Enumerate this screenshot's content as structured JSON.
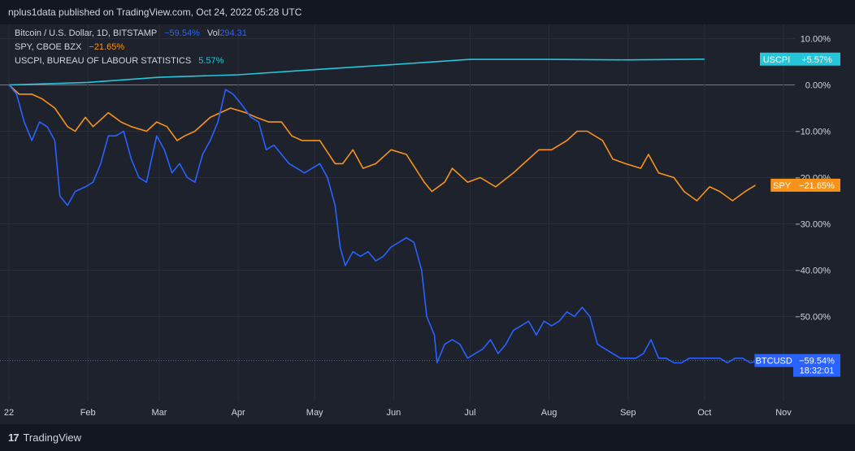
{
  "header": {
    "attribution": "nplus1data published on TradingView.com, Oct 24, 2022 05:28 UTC"
  },
  "legend": [
    {
      "name": "Bitcoin / U.S. Dollar, 1D, BITSTAMP",
      "change": "−59.54%",
      "extra_label": "Vol",
      "extra_value": "294.31",
      "color": "#2962ff"
    },
    {
      "name": "SPY, CBOE BZX",
      "change": "−21.65%",
      "color": "#f7931a"
    },
    {
      "name": "USCPI, BUREAU OF LABOUR STATISTICS",
      "change": "5.57%",
      "color": "#26c6da"
    }
  ],
  "footer": {
    "brand": "TradingView",
    "logo_mark": "17"
  },
  "chart_data": {
    "type": "line",
    "x_unit": "date",
    "x_range": [
      "2022-01-01",
      "2022-11-01"
    ],
    "ylim": [
      -60,
      10
    ],
    "y_ticks": [
      {
        "value": 10,
        "label": "10.00%"
      },
      {
        "value": 0,
        "label": "0.00%"
      },
      {
        "value": -10,
        "label": "−10.00%"
      },
      {
        "value": -20,
        "label": "−20.00%"
      },
      {
        "value": -30,
        "label": "−30.00%"
      },
      {
        "value": -40,
        "label": "−40.00%"
      },
      {
        "value": -50,
        "label": "−50.00%"
      }
    ],
    "x_ticks": [
      {
        "date": "2022-01-01",
        "label": "22"
      },
      {
        "date": "2022-02-01",
        "label": "Feb"
      },
      {
        "date": "2022-03-01",
        "label": "Mar"
      },
      {
        "date": "2022-04-01",
        "label": "Apr"
      },
      {
        "date": "2022-05-01",
        "label": "May"
      },
      {
        "date": "2022-06-01",
        "label": "Jun"
      },
      {
        "date": "2022-07-01",
        "label": "Jul"
      },
      {
        "date": "2022-08-01",
        "label": "Aug"
      },
      {
        "date": "2022-09-01",
        "label": "Sep"
      },
      {
        "date": "2022-10-01",
        "label": "Oct"
      },
      {
        "date": "2022-11-01",
        "label": "Nov"
      }
    ],
    "grid": true,
    "series": [
      {
        "name": "BTCUSD",
        "color": "#2962ff",
        "label_value": "−59.54%",
        "label_sub": "18:32:01",
        "points": [
          [
            "2022-01-01",
            0
          ],
          [
            "2022-01-04",
            -2
          ],
          [
            "2022-01-07",
            -8
          ],
          [
            "2022-01-10",
            -12
          ],
          [
            "2022-01-13",
            -8
          ],
          [
            "2022-01-16",
            -9
          ],
          [
            "2022-01-19",
            -12
          ],
          [
            "2022-01-21",
            -24
          ],
          [
            "2022-01-24",
            -26
          ],
          [
            "2022-01-27",
            -23
          ],
          [
            "2022-01-31",
            -22
          ],
          [
            "2022-02-03",
            -21
          ],
          [
            "2022-02-06",
            -17
          ],
          [
            "2022-02-09",
            -11
          ],
          [
            "2022-02-12",
            -11
          ],
          [
            "2022-02-15",
            -10
          ],
          [
            "2022-02-18",
            -16
          ],
          [
            "2022-02-21",
            -20
          ],
          [
            "2022-02-24",
            -21
          ],
          [
            "2022-02-28",
            -11
          ],
          [
            "2022-03-03",
            -14
          ],
          [
            "2022-03-06",
            -19
          ],
          [
            "2022-03-09",
            -17
          ],
          [
            "2022-03-12",
            -20
          ],
          [
            "2022-03-15",
            -21
          ],
          [
            "2022-03-18",
            -15
          ],
          [
            "2022-03-21",
            -12
          ],
          [
            "2022-03-24",
            -8
          ],
          [
            "2022-03-27",
            -1
          ],
          [
            "2022-03-30",
            -2
          ],
          [
            "2022-04-02",
            -4
          ],
          [
            "2022-04-06",
            -7
          ],
          [
            "2022-04-09",
            -8
          ],
          [
            "2022-04-12",
            -14
          ],
          [
            "2022-04-15",
            -13
          ],
          [
            "2022-04-18",
            -15
          ],
          [
            "2022-04-21",
            -17
          ],
          [
            "2022-04-24",
            -18
          ],
          [
            "2022-04-27",
            -19
          ],
          [
            "2022-04-30",
            -18
          ],
          [
            "2022-05-03",
            -17
          ],
          [
            "2022-05-06",
            -20
          ],
          [
            "2022-05-09",
            -26
          ],
          [
            "2022-05-11",
            -35
          ],
          [
            "2022-05-13",
            -39
          ],
          [
            "2022-05-16",
            -36
          ],
          [
            "2022-05-19",
            -37
          ],
          [
            "2022-05-22",
            -36
          ],
          [
            "2022-05-25",
            -38
          ],
          [
            "2022-05-28",
            -37
          ],
          [
            "2022-05-31",
            -35
          ],
          [
            "2022-06-03",
            -34
          ],
          [
            "2022-06-06",
            -33
          ],
          [
            "2022-06-09",
            -34
          ],
          [
            "2022-06-12",
            -40
          ],
          [
            "2022-06-14",
            -50
          ],
          [
            "2022-06-17",
            -54
          ],
          [
            "2022-06-18",
            -60
          ],
          [
            "2022-06-21",
            -56
          ],
          [
            "2022-06-24",
            -55
          ],
          [
            "2022-06-27",
            -56
          ],
          [
            "2022-06-30",
            -59
          ],
          [
            "2022-07-03",
            -58
          ],
          [
            "2022-07-06",
            -57
          ],
          [
            "2022-07-09",
            -55
          ],
          [
            "2022-07-12",
            -58
          ],
          [
            "2022-07-15",
            -56
          ],
          [
            "2022-07-18",
            -53
          ],
          [
            "2022-07-21",
            -52
          ],
          [
            "2022-07-24",
            -51
          ],
          [
            "2022-07-27",
            -54
          ],
          [
            "2022-07-30",
            -51
          ],
          [
            "2022-08-02",
            -52
          ],
          [
            "2022-08-05",
            -51
          ],
          [
            "2022-08-08",
            -49
          ],
          [
            "2022-08-11",
            -50
          ],
          [
            "2022-08-14",
            -48
          ],
          [
            "2022-08-17",
            -50
          ],
          [
            "2022-08-20",
            -56
          ],
          [
            "2022-08-23",
            -57
          ],
          [
            "2022-08-26",
            -58
          ],
          [
            "2022-08-29",
            -59
          ],
          [
            "2022-09-01",
            -59
          ],
          [
            "2022-09-04",
            -59
          ],
          [
            "2022-09-07",
            -58
          ],
          [
            "2022-09-10",
            -55
          ],
          [
            "2022-09-13",
            -59
          ],
          [
            "2022-09-16",
            -59
          ],
          [
            "2022-09-19",
            -60
          ],
          [
            "2022-09-22",
            -60
          ],
          [
            "2022-09-25",
            -59
          ],
          [
            "2022-09-28",
            -59
          ],
          [
            "2022-10-01",
            -59
          ],
          [
            "2022-10-04",
            -59
          ],
          [
            "2022-10-07",
            -59
          ],
          [
            "2022-10-10",
            -60
          ],
          [
            "2022-10-13",
            -59
          ],
          [
            "2022-10-16",
            -59
          ],
          [
            "2022-10-19",
            -60
          ],
          [
            "2022-10-22",
            -59.5
          ]
        ]
      },
      {
        "name": "SPY",
        "color": "#f7931a",
        "label_value": "−21.65%",
        "points": [
          [
            "2022-01-01",
            0
          ],
          [
            "2022-01-05",
            -2
          ],
          [
            "2022-01-10",
            -2
          ],
          [
            "2022-01-14",
            -3
          ],
          [
            "2022-01-19",
            -5
          ],
          [
            "2022-01-24",
            -9
          ],
          [
            "2022-01-27",
            -10
          ],
          [
            "2022-01-31",
            -7
          ],
          [
            "2022-02-03",
            -9
          ],
          [
            "2022-02-09",
            -6
          ],
          [
            "2022-02-14",
            -8
          ],
          [
            "2022-02-18",
            -9
          ],
          [
            "2022-02-24",
            -10
          ],
          [
            "2022-02-28",
            -8
          ],
          [
            "2022-03-04",
            -9
          ],
          [
            "2022-03-08",
            -12
          ],
          [
            "2022-03-11",
            -11
          ],
          [
            "2022-03-15",
            -10
          ],
          [
            "2022-03-21",
            -7
          ],
          [
            "2022-03-29",
            -5
          ],
          [
            "2022-04-04",
            -6
          ],
          [
            "2022-04-08",
            -7
          ],
          [
            "2022-04-13",
            -8
          ],
          [
            "2022-04-18",
            -8
          ],
          [
            "2022-04-22",
            -11
          ],
          [
            "2022-04-26",
            -12
          ],
          [
            "2022-05-03",
            -12
          ],
          [
            "2022-05-09",
            -17
          ],
          [
            "2022-05-12",
            -17
          ],
          [
            "2022-05-16",
            -14
          ],
          [
            "2022-05-20",
            -18
          ],
          [
            "2022-05-25",
            -17
          ],
          [
            "2022-05-31",
            -14
          ],
          [
            "2022-06-06",
            -15
          ],
          [
            "2022-06-13",
            -21
          ],
          [
            "2022-06-16",
            -23
          ],
          [
            "2022-06-21",
            -21
          ],
          [
            "2022-06-24",
            -18
          ],
          [
            "2022-06-30",
            -21
          ],
          [
            "2022-07-05",
            -20
          ],
          [
            "2022-07-11",
            -22
          ],
          [
            "2022-07-18",
            -19
          ],
          [
            "2022-07-22",
            -17
          ],
          [
            "2022-07-28",
            -14
          ],
          [
            "2022-08-02",
            -14
          ],
          [
            "2022-08-08",
            -12
          ],
          [
            "2022-08-12",
            -10
          ],
          [
            "2022-08-16",
            -10
          ],
          [
            "2022-08-22",
            -12
          ],
          [
            "2022-08-26",
            -16
          ],
          [
            "2022-08-31",
            -17
          ],
          [
            "2022-09-06",
            -18
          ],
          [
            "2022-09-09",
            -15
          ],
          [
            "2022-09-13",
            -19
          ],
          [
            "2022-09-19",
            -20
          ],
          [
            "2022-09-23",
            -23
          ],
          [
            "2022-09-28",
            -25
          ],
          [
            "2022-10-03",
            -22
          ],
          [
            "2022-10-07",
            -23
          ],
          [
            "2022-10-12",
            -25
          ],
          [
            "2022-10-17",
            -23
          ],
          [
            "2022-10-21",
            -21.65
          ]
        ]
      },
      {
        "name": "USCPI",
        "color": "#26c6da",
        "label_value": "+5.57%",
        "points": [
          [
            "2022-01-01",
            0
          ],
          [
            "2022-02-01",
            0.55
          ],
          [
            "2022-03-01",
            1.65
          ],
          [
            "2022-04-01",
            2.2
          ],
          [
            "2022-05-01",
            3.3
          ],
          [
            "2022-06-01",
            4.4
          ],
          [
            "2022-07-01",
            5.5
          ],
          [
            "2022-08-01",
            5.5
          ],
          [
            "2022-09-01",
            5.4
          ],
          [
            "2022-10-01",
            5.57
          ]
        ]
      }
    ]
  }
}
